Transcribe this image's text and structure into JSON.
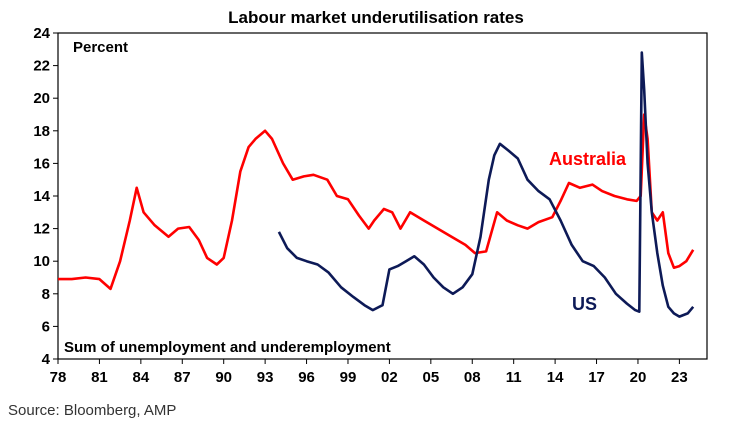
{
  "chart_data": {
    "type": "line",
    "title": "Labour market underutilisation rates",
    "unit_label": "Percent",
    "footnote": "Sum of unemployment and underemployment",
    "source": "Source: Bloomberg, AMP",
    "xlim": [
      1978,
      2025
    ],
    "ylim": [
      4,
      24
    ],
    "yticks": [
      4,
      6,
      8,
      10,
      12,
      14,
      16,
      18,
      20,
      22,
      24
    ],
    "xticks": [
      {
        "year": 1978,
        "label": "78"
      },
      {
        "year": 1981,
        "label": "81"
      },
      {
        "year": 1984,
        "label": "84"
      },
      {
        "year": 1987,
        "label": "87"
      },
      {
        "year": 1990,
        "label": "90"
      },
      {
        "year": 1993,
        "label": "93"
      },
      {
        "year": 1996,
        "label": "96"
      },
      {
        "year": 1999,
        "label": "99"
      },
      {
        "year": 2002,
        "label": "02"
      },
      {
        "year": 2005,
        "label": "05"
      },
      {
        "year": 2008,
        "label": "08"
      },
      {
        "year": 2011,
        "label": "11"
      },
      {
        "year": 2014,
        "label": "14"
      },
      {
        "year": 2017,
        "label": "17"
      },
      {
        "year": 2020,
        "label": "20"
      },
      {
        "year": 2023,
        "label": "23"
      }
    ],
    "grid": false,
    "series": [
      {
        "name": "Australia",
        "color": "#ff0000",
        "x": [
          1978.0,
          1979.0,
          1980.0,
          1981.0,
          1981.8,
          1982.5,
          1983.2,
          1983.7,
          1984.2,
          1985.0,
          1986.0,
          1986.7,
          1987.5,
          1988.2,
          1988.8,
          1989.5,
          1990.0,
          1990.6,
          1991.2,
          1991.8,
          1992.3,
          1993.0,
          1993.5,
          1994.3,
          1995.0,
          1995.8,
          1996.5,
          1997.5,
          1998.2,
          1999.0,
          1999.8,
          2000.5,
          2000.9,
          2001.6,
          2002.2,
          2002.8,
          2003.5,
          2004.5,
          2005.5,
          2006.5,
          2007.5,
          2008.2,
          2009.0,
          2009.8,
          2010.5,
          2011.3,
          2012.0,
          2012.8,
          2013.8,
          2014.4,
          2015.0,
          2015.8,
          2016.7,
          2017.4,
          2018.3,
          2019.2,
          2019.9,
          2020.2,
          2020.45,
          2020.7,
          2021.0,
          2021.4,
          2021.8,
          2022.2,
          2022.6,
          2023.0,
          2023.5,
          2024.0
        ],
        "values": [
          8.9,
          8.9,
          9.0,
          8.9,
          8.3,
          10.0,
          12.5,
          14.5,
          13.0,
          12.2,
          11.5,
          12.0,
          12.1,
          11.3,
          10.2,
          9.8,
          10.2,
          12.5,
          15.5,
          17.0,
          17.5,
          18.0,
          17.5,
          16.0,
          15.0,
          15.2,
          15.3,
          15.0,
          14.0,
          13.8,
          12.8,
          12.0,
          12.5,
          13.2,
          13.0,
          12.0,
          13.0,
          12.5,
          12.0,
          11.5,
          11.0,
          10.5,
          10.6,
          13.0,
          12.5,
          12.2,
          12.0,
          12.4,
          12.7,
          13.7,
          14.8,
          14.5,
          14.7,
          14.3,
          14.0,
          13.8,
          13.7,
          14.0,
          19.0,
          17.5,
          13.0,
          12.5,
          13.0,
          10.5,
          9.6,
          9.7,
          10.0,
          10.7
        ]
      },
      {
        "name": "US",
        "color": "#0d1a57",
        "x": [
          1994.0,
          1994.6,
          1995.3,
          1996.0,
          1996.8,
          1997.6,
          1998.5,
          1999.4,
          2000.2,
          2000.8,
          2001.5,
          2002.0,
          2002.6,
          2003.2,
          2003.8,
          2004.5,
          2005.2,
          2005.9,
          2006.6,
          2007.3,
          2008.0,
          2008.6,
          2009.2,
          2009.6,
          2010.0,
          2010.6,
          2011.3,
          2012.0,
          2012.8,
          2013.6,
          2014.4,
          2015.2,
          2016.0,
          2016.8,
          2017.6,
          2018.4,
          2019.2,
          2019.8,
          2020.1,
          2020.28,
          2020.45,
          2020.7,
          2021.0,
          2021.4,
          2021.8,
          2022.2,
          2022.6,
          2023.0,
          2023.6,
          2024.0
        ],
        "values": [
          11.8,
          10.8,
          10.2,
          10.0,
          9.8,
          9.3,
          8.4,
          7.8,
          7.3,
          7.0,
          7.3,
          9.5,
          9.7,
          10.0,
          10.3,
          9.8,
          9.0,
          8.4,
          8.0,
          8.4,
          9.2,
          11.5,
          15.0,
          16.5,
          17.2,
          16.8,
          16.3,
          15.0,
          14.3,
          13.8,
          12.5,
          11.0,
          10.0,
          9.7,
          9.0,
          8.0,
          7.4,
          7.0,
          6.9,
          22.8,
          20.5,
          16.0,
          13.0,
          10.5,
          8.5,
          7.2,
          6.8,
          6.6,
          6.8,
          7.2
        ]
      }
    ]
  }
}
